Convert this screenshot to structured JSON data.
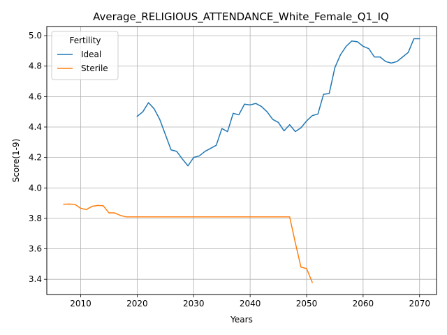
{
  "chart_data": {
    "type": "line",
    "title": "Average_RELIGIOUS_ATTENDANCE_White_Female_Q1_IQ",
    "xlabel": "Years",
    "ylabel": "Score(1-9)",
    "xlim": [
      2004,
      2073
    ],
    "ylim": [
      3.3,
      5.06
    ],
    "xticks": [
      2010,
      2020,
      2030,
      2040,
      2050,
      2060,
      2070
    ],
    "yticks": [
      3.4,
      3.6,
      3.8,
      4.0,
      4.2,
      4.4,
      4.6,
      4.8,
      5.0
    ],
    "xtick_labels": [
      "2010",
      "2020",
      "2030",
      "2040",
      "2050",
      "2060",
      "2070"
    ],
    "ytick_labels": [
      "3.4",
      "3.6",
      "3.8",
      "4.0",
      "4.2",
      "4.4",
      "4.6",
      "4.8",
      "5.0"
    ],
    "grid": true,
    "legend": {
      "title": "Fertility",
      "placement": "top-left"
    },
    "series": [
      {
        "name": "Ideal",
        "color": "#1f77b4",
        "x": [
          2020,
          2021,
          2022,
          2023,
          2024,
          2025,
          2026,
          2027,
          2028,
          2029,
          2030,
          2031,
          2032,
          2033,
          2034,
          2035,
          2036,
          2037,
          2038,
          2039,
          2040,
          2041,
          2042,
          2043,
          2044,
          2045,
          2046,
          2047,
          2048,
          2049,
          2050,
          2051,
          2052,
          2053,
          2054,
          2055,
          2056,
          2057,
          2058,
          2059,
          2060,
          2061,
          2062,
          2063,
          2064,
          2065,
          2066,
          2067,
          2068,
          2069,
          2070
        ],
        "y": [
          4.47,
          4.5,
          4.56,
          4.52,
          4.45,
          4.35,
          4.25,
          4.24,
          4.19,
          4.145,
          4.2,
          4.21,
          4.24,
          4.26,
          4.28,
          4.39,
          4.37,
          4.49,
          4.48,
          4.55,
          4.545,
          4.555,
          4.535,
          4.5,
          4.45,
          4.43,
          4.375,
          4.415,
          4.37,
          4.395,
          4.44,
          4.475,
          4.485,
          4.615,
          4.62,
          4.79,
          4.875,
          4.93,
          4.965,
          4.96,
          4.93,
          4.915,
          4.86,
          4.86,
          4.83,
          4.82,
          4.83,
          4.86,
          4.89,
          4.98,
          4.98
        ]
      },
      {
        "name": "Sterile",
        "color": "#ff7f0e",
        "x": [
          2007,
          2008,
          2009,
          2010,
          2011,
          2012,
          2013,
          2014,
          2015,
          2016,
          2017,
          2018,
          2019,
          2020,
          2021,
          2022,
          2023,
          2024,
          2025,
          2026,
          2027,
          2028,
          2029,
          2030,
          2031,
          2032,
          2033,
          2034,
          2035,
          2036,
          2037,
          2038,
          2039,
          2040,
          2041,
          2042,
          2043,
          2044,
          2045,
          2046,
          2047,
          2048,
          2049,
          2050,
          2051
        ],
        "y": [
          3.893,
          3.894,
          3.892,
          3.866,
          3.858,
          3.879,
          3.885,
          3.883,
          3.836,
          3.836,
          3.82,
          3.81,
          3.81,
          3.81,
          3.81,
          3.81,
          3.81,
          3.81,
          3.81,
          3.81,
          3.81,
          3.81,
          3.81,
          3.81,
          3.81,
          3.81,
          3.81,
          3.81,
          3.81,
          3.81,
          3.81,
          3.81,
          3.81,
          3.81,
          3.81,
          3.81,
          3.81,
          3.81,
          3.81,
          3.81,
          3.81,
          3.64,
          3.48,
          3.47,
          3.38
        ]
      }
    ]
  }
}
